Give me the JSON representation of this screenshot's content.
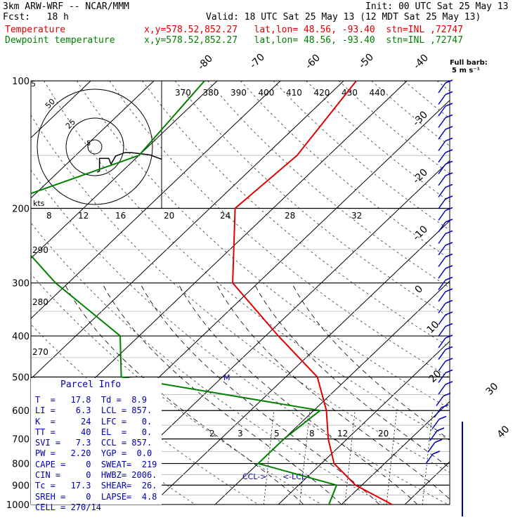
{
  "header": {
    "model": "3km ARW-WRF -- NCAR/MMM",
    "init": "Init: 00 UTC Sat 25 May 13",
    "fcst": "Fcst:   18 h",
    "valid": "Valid: 18 UTC Sat 25 May 13 (12 MDT Sat 25 May 13)",
    "temp_label": "Temperature",
    "temp_info": "x,y=578.52,852.27   lat,lon= 48.56, -93.40  stn=INL ,72747",
    "dew_label": "Dewpoint temperature",
    "dew_info": "x,y=578.52,852.27   lat,lon= 48.56, -93.40  stn=INL ,72747"
  },
  "wind_key": {
    "title": "Full barb:",
    "value": "5 m s⁻¹"
  },
  "parcel": {
    "title": "Parcel Info",
    "rows": [
      "T  =   17.8  Td =  8.9",
      "LI =    6.3  LCL = 857.",
      "K  =     24  LFC =   0.",
      "TT =     40  EL  =   0.",
      "SVI =   7.3  CCL = 857.",
      "PW =   2.20  YGP =  0.0",
      "CAPE =    0  SWEAT=  219",
      "CIN =     0  HWBZ= 2006.",
      "Tc =   17.3  SHEAR=  26.",
      "SREH =    0  LAPSE=  4.8",
      "CELL = 270/14"
    ]
  },
  "hodograph": {
    "unit_label": "kts",
    "ring_labels": [
      "5",
      "25",
      "50"
    ],
    "u_kts": [
      2,
      4,
      4,
      12,
      14,
      18,
      26,
      32,
      48,
      56,
      62
    ],
    "v_kts": [
      -22,
      -21,
      -10,
      -10,
      -15,
      -8,
      -5,
      -5,
      -7,
      -10,
      -12
    ]
  },
  "chart_data": {
    "type": "line",
    "title": "",
    "ylabel": "",
    "xlabel": "",
    "y_scale": "log-pressure",
    "ylim": [
      1000,
      100
    ],
    "pressure_ticks": [
      "100",
      "200",
      "300",
      "400",
      "500",
      "600",
      "700",
      "800",
      "900",
      "1000"
    ],
    "top_temp_labels": [
      "-80",
      "-70",
      "-60",
      "-50",
      "-40"
    ],
    "right_temp_labels": [
      "-30",
      "-20",
      "-10",
      "0",
      "10",
      "20",
      "30",
      "40"
    ],
    "theta_labels": [
      "370",
      "380",
      "390",
      "400",
      "410",
      "420",
      "430",
      "440"
    ],
    "theta_side_labels": [
      "290",
      "280",
      "270"
    ],
    "mixing_ratio_labels": [
      "2",
      "3",
      "5",
      "8",
      "12",
      "20"
    ],
    "hodo_speed_labels": [
      "8",
      "12",
      "16",
      "20",
      "24",
      "28",
      "32"
    ],
    "annotations": {
      "ccl": "CCL->",
      "lcl": "<-LCL",
      "left_mark": "5",
      "m_mark": "M"
    },
    "series": [
      {
        "name": "Temperature",
        "color": "#e00000",
        "p": [
          100,
          150,
          200,
          300,
          400,
          500,
          600,
          700,
          800,
          900,
          1000
        ],
        "t": [
          -58,
          -55,
          -56,
          -44,
          -28,
          -15,
          -8,
          -3,
          2,
          9,
          18
        ]
      },
      {
        "name": "Dewpoint temperature",
        "color": "#008000",
        "p": [
          100,
          150,
          200,
          300,
          400,
          500,
          600,
          700,
          800,
          900,
          1000
        ],
        "t": [
          -82,
          -80,
          -95,
          -72,
          -53,
          -46,
          -9,
          -10,
          -10,
          6,
          8
        ]
      }
    ]
  }
}
